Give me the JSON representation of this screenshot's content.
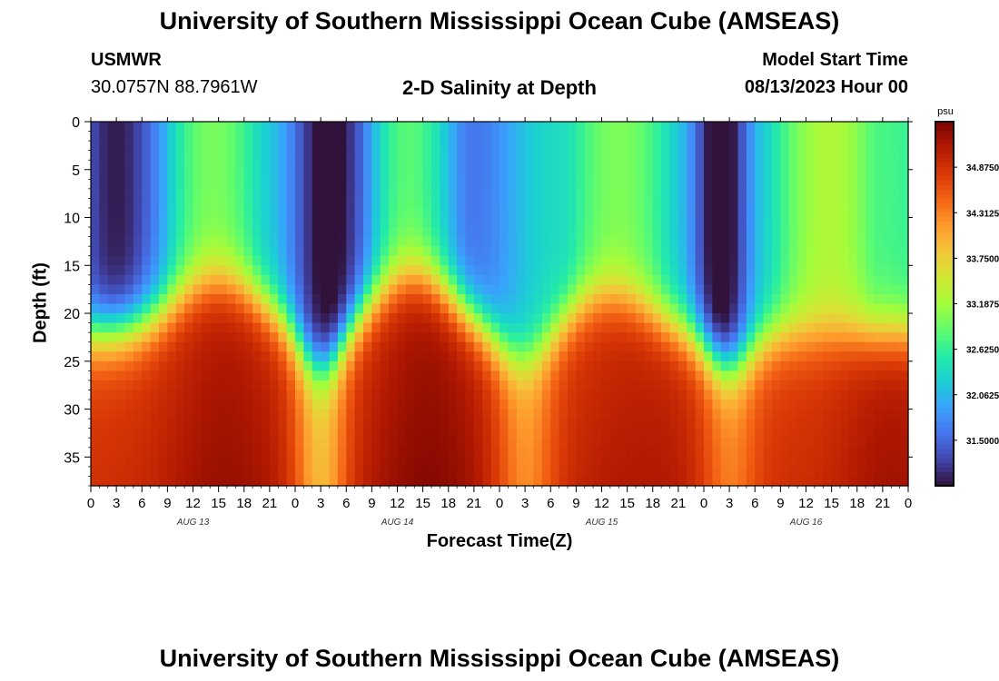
{
  "header": {
    "title": "University of Southern Mississippi Ocean Cube (AMSEAS)",
    "station": "USMWR",
    "coords": "30.0757N  88.7961W",
    "plot_title": "2-D Salinity at Depth",
    "model_start_label": "Model Start Time",
    "model_start_value": "08/13/2023 Hour 00"
  },
  "footer": {
    "title": "University of Southern Mississippi Ocean Cube (AMSEAS)"
  },
  "chart_data": {
    "type": "heatmap",
    "title": "2-D Salinity at Depth",
    "xlabel": "Forecast Time(Z)",
    "ylabel": "Depth (ft)",
    "x_range_hours": [
      0,
      96
    ],
    "y_range_ft": [
      0,
      38
    ],
    "y_inverted": true,
    "x_tick_labels": [
      "0",
      "3",
      "6",
      "9",
      "12",
      "15",
      "18",
      "21",
      "0",
      "3",
      "6",
      "9",
      "12",
      "15",
      "18",
      "21",
      "0",
      "3",
      "6",
      "9",
      "12",
      "15",
      "18",
      "21",
      "0",
      "3",
      "6",
      "9",
      "12",
      "15",
      "18",
      "21",
      "0"
    ],
    "y_tick_values": [
      0,
      5,
      10,
      15,
      20,
      25,
      30,
      35
    ],
    "y_tick_labels": [
      "0",
      "5",
      "10",
      "15",
      "20",
      "25",
      "30",
      "35"
    ],
    "day_labels": [
      {
        "label": "AUG 13",
        "hour": 12
      },
      {
        "label": "AUG 14",
        "hour": 36
      },
      {
        "label": "AUG 15",
        "hour": 60
      },
      {
        "label": "AUG 16",
        "hour": 84
      }
    ],
    "colorbar": {
      "unit": "psu",
      "min": 30.9375,
      "max": 35.4375,
      "tick_values": [
        34.875,
        34.3125,
        33.75,
        33.1875,
        32.625,
        32.0625,
        31.5
      ],
      "tick_labels": [
        "34.8750",
        "34.3125",
        "33.7500",
        "33.1875",
        "32.6250",
        "32.0625",
        "31.5000"
      ],
      "colors": [
        "#30123b",
        "#4145ab",
        "#4675ed",
        "#39a2fc",
        "#1bcfd4",
        "#24eca6",
        "#61fc6c",
        "#a4fc3b",
        "#d1e834",
        "#f3c63a",
        "#fe9b2d",
        "#f36315",
        "#d93806",
        "#b11901",
        "#7a0402"
      ]
    },
    "field": {
      "surface_low_centers_hours": [
        3,
        28,
        45,
        74
      ],
      "surface_low_psu": [
        31.1,
        31.0,
        31.7,
        30.95
      ],
      "ridge_centers_hours": [
        15,
        38,
        62,
        88
      ],
      "trough_centers_hours": [
        27,
        52,
        76
      ],
      "deep_psu": 35.0,
      "surface_mean_psu": 32.4
    }
  }
}
